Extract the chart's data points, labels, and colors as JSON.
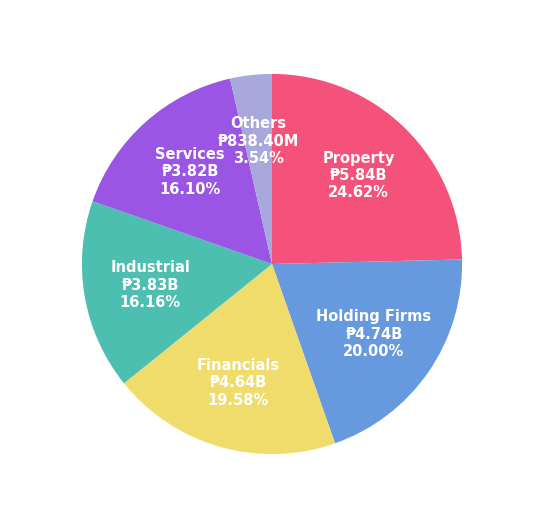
{
  "sectors": [
    "Property",
    "Holding Firms",
    "Financials",
    "Industrial",
    "Services",
    "Others"
  ],
  "values": [
    24.62,
    20.0,
    19.58,
    16.16,
    16.1,
    3.54
  ],
  "labels": [
    "Property\n₱5.84B\n24.62%",
    "Holding Firms\n₱4.74B\n20.00%",
    "Financials\n₱4.64B\n19.58%",
    "Industrial\n₱3.83B\n16.16%",
    "Services\n₱3.82B\n16.10%",
    "Others\n₱838.40M\n3.54%"
  ],
  "colors": [
    "#F4527A",
    "#6699DD",
    "#F0DC6A",
    "#4DBFB0",
    "#9B55E5",
    "#A8A8DD"
  ],
  "startangle": 90,
  "background_color": "#ffffff",
  "text_color": "#ffffff",
  "label_fontsize": 10.5,
  "labeldistance": 0.65
}
